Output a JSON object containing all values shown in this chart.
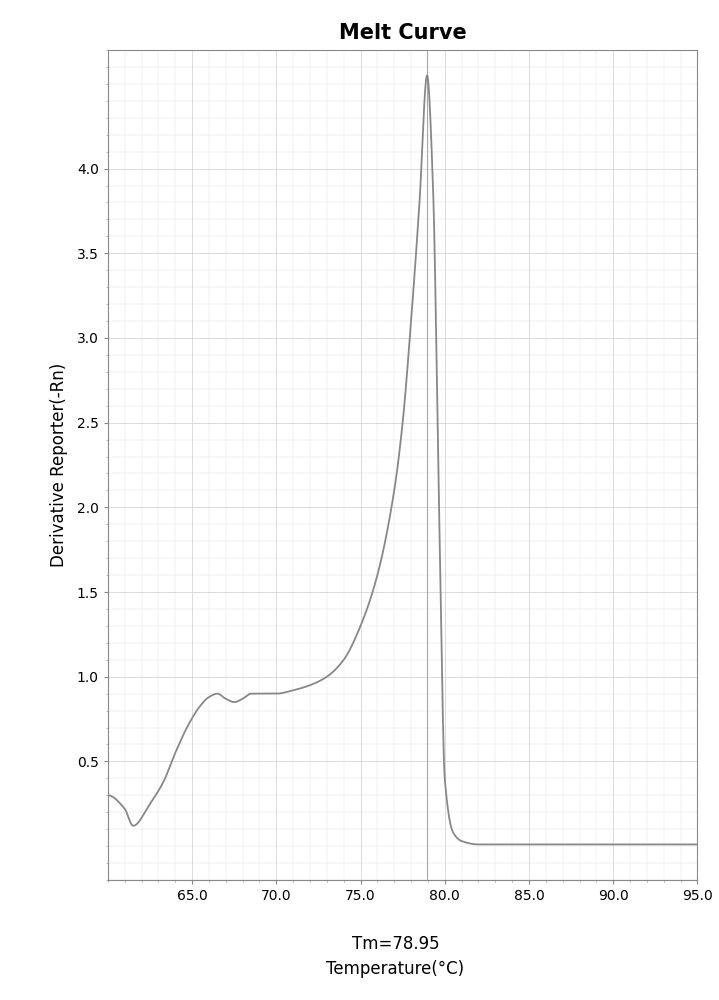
{
  "title": "Melt Curve",
  "xlabel": "Temperature(°C)",
  "ylabel": "Derivative Reporter(-Rn)",
  "tm_label": "Tm=78.95",
  "xlim": [
    60.0,
    95.0
  ],
  "ylim": [
    -0.2,
    4.7
  ],
  "xticks": [
    65.0,
    70.0,
    75.0,
    80.0,
    85.0,
    90.0,
    95.0
  ],
  "yticks": [
    0.5,
    1.0,
    1.5,
    2.0,
    2.5,
    3.0,
    3.5,
    4.0
  ],
  "line_color": "#888888",
  "background_color": "#ffffff",
  "grid_color": "#cccccc",
  "title_fontsize": 15,
  "label_fontsize": 12,
  "tick_fontsize": 10,
  "tm_peak": 78.95,
  "peak_value": 4.55
}
